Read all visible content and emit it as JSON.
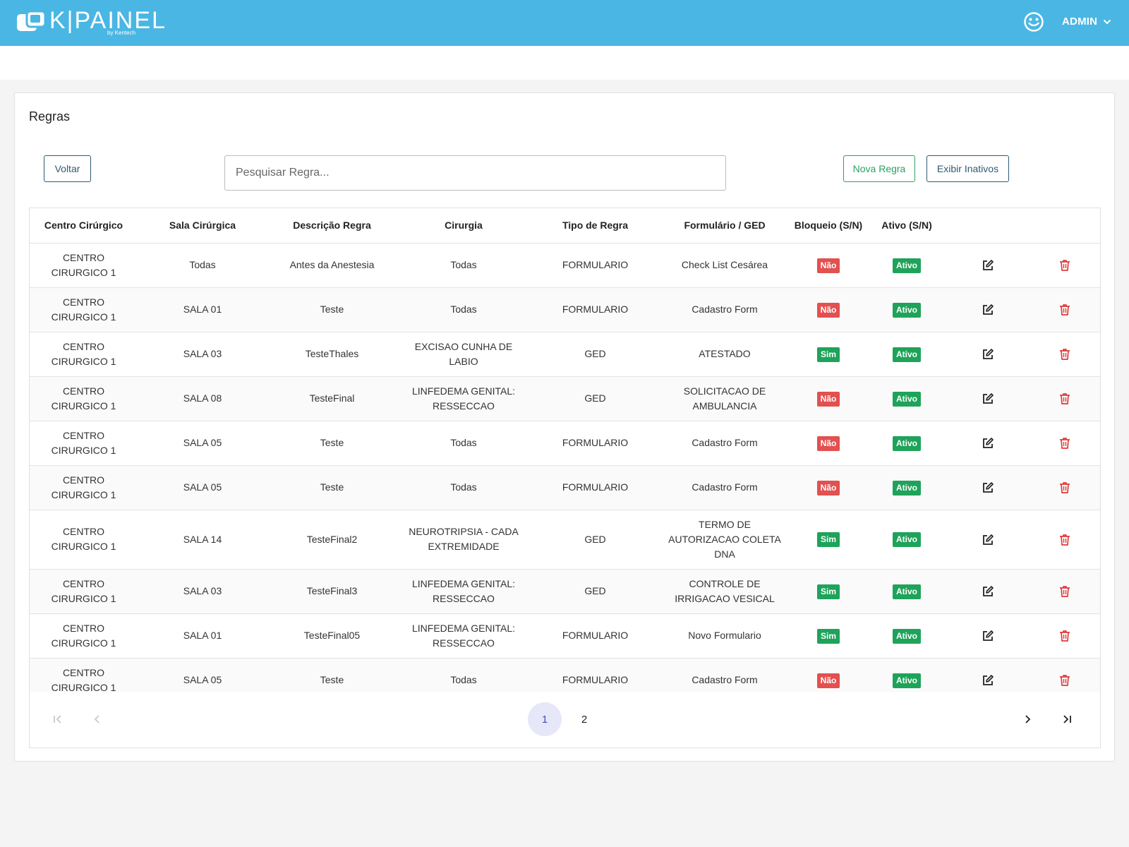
{
  "app": {
    "logo_text": "K|PAINEL",
    "logo_sub": "by Kentech",
    "user_name": "ADMIN"
  },
  "page": {
    "title": "Regras",
    "back_label": "Voltar",
    "search_placeholder": "Pesquisar Regra...",
    "new_label": "Nova Regra",
    "inactive_label": "Exibir Inativos"
  },
  "table": {
    "headers": [
      "Centro Cirúrgico",
      "Sala Cirúrgica",
      "Descrição Regra",
      "Cirurgia",
      "Tipo de Regra",
      "Formulário / GED",
      "Bloqueio (S/N)",
      "Ativo (S/N)"
    ],
    "rows": [
      {
        "centro": "CENTRO CIRURGICO 1",
        "sala": "Todas",
        "descricao": "Antes da Anestesia",
        "cirurgia": "Todas",
        "tipo": "FORMULARIO",
        "formulario": "Check List Cesárea",
        "bloqueio": "Não",
        "ativo": "Ativo"
      },
      {
        "centro": "CENTRO CIRURGICO 1",
        "sala": "SALA 01",
        "descricao": "Teste",
        "cirurgia": "Todas",
        "tipo": "FORMULARIO",
        "formulario": "Cadastro Form",
        "bloqueio": "Não",
        "ativo": "Ativo"
      },
      {
        "centro": "CENTRO CIRURGICO 1",
        "sala": "SALA 03",
        "descricao": "TesteThales",
        "cirurgia": "EXCISAO CUNHA DE LABIO",
        "tipo": "GED",
        "formulario": "ATESTADO",
        "bloqueio": "Sim",
        "ativo": "Ativo"
      },
      {
        "centro": "CENTRO CIRURGICO 1",
        "sala": "SALA 08",
        "descricao": "TesteFinal",
        "cirurgia": "LINFEDEMA GENITAL: RESSECCAO",
        "tipo": "GED",
        "formulario": "SOLICITACAO DE AMBULANCIA",
        "bloqueio": "Não",
        "ativo": "Ativo"
      },
      {
        "centro": "CENTRO CIRURGICO 1",
        "sala": "SALA 05",
        "descricao": "Teste",
        "cirurgia": "Todas",
        "tipo": "FORMULARIO",
        "formulario": "Cadastro Form",
        "bloqueio": "Não",
        "ativo": "Ativo"
      },
      {
        "centro": "CENTRO CIRURGICO 1",
        "sala": "SALA 05",
        "descricao": "Teste",
        "cirurgia": "Todas",
        "tipo": "FORMULARIO",
        "formulario": "Cadastro Form",
        "bloqueio": "Não",
        "ativo": "Ativo"
      },
      {
        "centro": "CENTRO CIRURGICO 1",
        "sala": "SALA 14",
        "descricao": "TesteFinal2",
        "cirurgia": "NEUROTRIPSIA - CADA EXTREMIDADE",
        "tipo": "GED",
        "formulario": "TERMO DE AUTORIZACAO COLETA DNA",
        "bloqueio": "Sim",
        "ativo": "Ativo"
      },
      {
        "centro": "CENTRO CIRURGICO 1",
        "sala": "SALA 03",
        "descricao": "TesteFinal3",
        "cirurgia": "LINFEDEMA GENITAL: RESSECCAO",
        "tipo": "GED",
        "formulario": "CONTROLE DE IRRIGACAO VESICAL",
        "bloqueio": "Sim",
        "ativo": "Ativo"
      },
      {
        "centro": "CENTRO CIRURGICO 1",
        "sala": "SALA 01",
        "descricao": "TesteFinal05",
        "cirurgia": "LINFEDEMA GENITAL: RESSECCAO",
        "tipo": "FORMULARIO",
        "formulario": "Novo Formulario",
        "bloqueio": "Sim",
        "ativo": "Ativo"
      },
      {
        "centro": "CENTRO CIRURGICO 1",
        "sala": "SALA 05",
        "descricao": "Teste",
        "cirurgia": "Todas",
        "tipo": "FORMULARIO",
        "formulario": "Cadastro Form",
        "bloqueio": "Não",
        "ativo": "Ativo"
      }
    ]
  },
  "pagination": {
    "pages": [
      "1",
      "2"
    ],
    "current": "1"
  },
  "icons": {
    "user": "smiley-face-icon",
    "edit": "edit-icon",
    "delete": "trash-icon"
  },
  "colors": {
    "topbar": "#4ab6e3",
    "success": "#1fa35a",
    "danger": "#e25050",
    "primary_outline": "#2e5b73"
  }
}
